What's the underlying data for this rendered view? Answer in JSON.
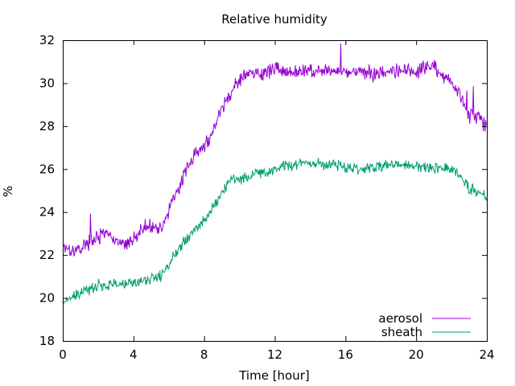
{
  "chart_data": {
    "type": "line",
    "title": "Relative humidity",
    "xlabel": "Time [hour]",
    "ylabel": "%",
    "xlim": [
      0,
      24
    ],
    "ylim": [
      18,
      32
    ],
    "xticks": [
      0,
      4,
      8,
      12,
      16,
      20,
      24
    ],
    "yticks": [
      18,
      20,
      22,
      24,
      26,
      28,
      30,
      32
    ],
    "grid": false,
    "legend_position": "bottom-right",
    "colors": {
      "aerosol": "#9400d3",
      "sheath": "#009e73"
    },
    "series": [
      {
        "name": "aerosol",
        "color": "#9400d3",
        "x": [
          0,
          0.5,
          1,
          1.5,
          2,
          2.5,
          3,
          3.5,
          4,
          4.5,
          5,
          5.5,
          6,
          6.5,
          7,
          7.5,
          8,
          8.5,
          9,
          9.5,
          10,
          10.5,
          11,
          11.5,
          12,
          12.5,
          13,
          13.5,
          14,
          14.5,
          15,
          15.5,
          16,
          16.5,
          17,
          17.5,
          18,
          18.5,
          19,
          19.5,
          20,
          20.5,
          21,
          21.5,
          22,
          22.5,
          23,
          23.5,
          24
        ],
        "y": [
          22.5,
          22.2,
          22.3,
          22.6,
          22.8,
          23.0,
          22.6,
          22.5,
          22.7,
          23.2,
          23.4,
          23.2,
          24.0,
          25.0,
          26.0,
          26.8,
          27.0,
          27.8,
          28.8,
          29.5,
          30.2,
          30.4,
          30.4,
          30.5,
          30.7,
          30.6,
          30.6,
          30.5,
          30.6,
          30.5,
          30.6,
          30.5,
          30.6,
          30.5,
          30.6,
          30.4,
          30.5,
          30.5,
          30.6,
          30.6,
          30.5,
          30.7,
          30.8,
          30.4,
          30.0,
          29.5,
          28.5,
          28.4,
          28.0
        ]
      },
      {
        "name": "sheath",
        "color": "#009e73",
        "x": [
          0,
          0.5,
          1,
          1.5,
          2,
          2.5,
          3,
          3.5,
          4,
          4.5,
          5,
          5.5,
          6,
          6.5,
          7,
          7.5,
          8,
          8.5,
          9,
          9.5,
          10,
          10.5,
          11,
          11.5,
          12,
          12.5,
          13,
          13.5,
          14,
          14.5,
          15,
          15.5,
          16,
          16.5,
          17,
          17.5,
          18,
          18.5,
          19,
          19.5,
          20,
          20.5,
          21,
          21.5,
          22,
          22.5,
          23,
          23.5,
          24
        ],
        "y": [
          19.8,
          20.0,
          20.2,
          20.4,
          20.6,
          20.6,
          20.7,
          20.6,
          20.7,
          20.8,
          20.9,
          21.0,
          21.5,
          22.3,
          22.8,
          23.2,
          23.6,
          24.2,
          24.9,
          25.5,
          25.6,
          25.6,
          25.8,
          25.8,
          26.0,
          26.2,
          26.2,
          26.3,
          26.3,
          26.3,
          26.2,
          26.2,
          26.1,
          26.1,
          26.0,
          26.1,
          26.1,
          26.2,
          26.2,
          26.2,
          26.1,
          26.1,
          26.1,
          26.1,
          26.0,
          25.7,
          25.1,
          24.9,
          24.7
        ]
      }
    ]
  }
}
